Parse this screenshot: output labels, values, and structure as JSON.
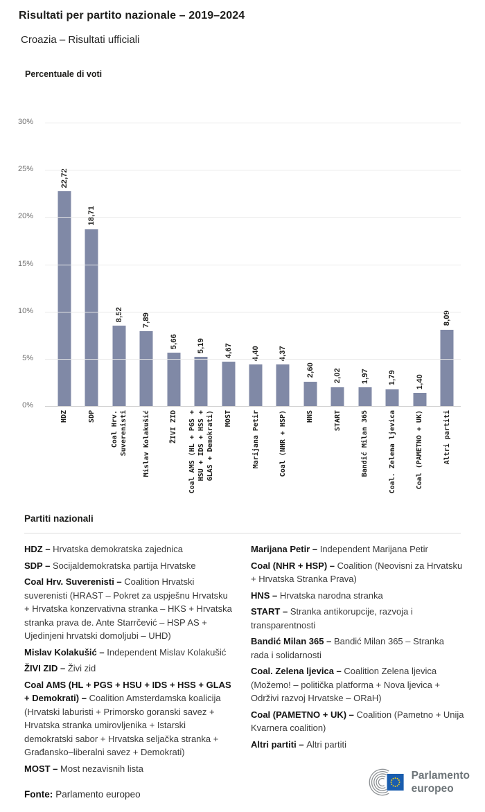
{
  "header": {
    "title": "Risultati per partito nazionale – 2019–2024",
    "subtitle": "Croazia – Risultati ufficiali"
  },
  "chart_data": {
    "type": "bar",
    "title": "Percentuale di voti",
    "xlabel": "",
    "ylabel": "Percentuale di voti",
    "ylim": [
      0,
      30
    ],
    "grid": "horizontal",
    "bar_color": "#8089A6",
    "yticks": [
      "30%",
      "25%",
      "20%",
      "15%",
      "10%",
      "5%",
      "0%"
    ],
    "categories": [
      "HDZ",
      "SDP",
      "Coal Hrv.\nSuverenisti",
      "Mislav Kolakušić",
      "ŽIVI ZID",
      "Coal AMS (HL + PGS +\nHSU + IDS + HSS +\nGLAS + Demokrati)",
      "MOST",
      "Marijana Petir",
      "Coal (NHR + HSP)",
      "HNS",
      "START",
      "Bandić Milan 365",
      "Coal. Zelena ljevica",
      "Coal (PAMETNO + UK)",
      "Altri partiti"
    ],
    "values": [
      22.72,
      18.71,
      8.52,
      7.89,
      5.66,
      5.19,
      4.67,
      4.4,
      4.37,
      2.6,
      2.02,
      1.97,
      1.79,
      1.4,
      8.09
    ],
    "value_labels": [
      "22,72",
      "18,71",
      "8,52",
      "7,89",
      "5,66",
      "5,19",
      "4,67",
      "4,40",
      "4,37",
      "2,60",
      "2,02",
      "1,97",
      "1,79",
      "1,40",
      "8,09"
    ]
  },
  "legend": {
    "heading": "Partiti nazionali",
    "left": [
      {
        "term": "HDZ –",
        "desc": "Hrvatska demokratska zajednica"
      },
      {
        "term": "SDP –",
        "desc": "Socijaldemokratska partija Hrvatske"
      },
      {
        "term": "Coal Hrv. Suverenisti –",
        "desc": "Coalition Hrvatski suverenisti (HRAST – Pokret za uspješnu Hrvatsku + Hrvatska konzervativna stranka – HKS + Hrvatska stranka prava de. Ante Starrčević – HSP AS + Ujedinjeni hrvatski domoljubi – UHD)"
      },
      {
        "term": "Mislav Kolakušić –",
        "desc": "Independent Mislav Kolakušić"
      },
      {
        "term": "ŽIVI ZID –",
        "desc": "Živi zid"
      },
      {
        "term": "Coal AMS (HL + PGS + HSU + IDS + HSS + GLAS + Demokrati) –",
        "desc": "Coalition Amsterdamska koalicija (Hrvatski laburisti + Primorsko goranski savez + Hrvatska stranka umirovljenika + Istarski demokratski sabor + Hrvatska seljačka stranka + Građansko–liberalni savez + Demokrati)"
      },
      {
        "term": "MOST –",
        "desc": "Most nezavisnih lista"
      }
    ],
    "right": [
      {
        "term": "Marijana Petir –",
        "desc": "Independent Marijana Petir"
      },
      {
        "term": "Coal (NHR + HSP) –",
        "desc": "Coalition (Neovisni za Hrvatsku + Hrvatska Stranka Prava)"
      },
      {
        "term": "HNS –",
        "desc": "Hrvatska narodna stranka"
      },
      {
        "term": "START –",
        "desc": "Stranka antikorupcije, razvoja i transparentnosti"
      },
      {
        "term": "Bandić Milan 365 –",
        "desc": "Bandić Milan 365 – Stranka rada i solidarnosti"
      },
      {
        "term": "Coal. Zelena ljevica –",
        "desc": "Coalition Zelena ljevica (Možemo! – politička platforma + Nova ljevica + Održivi razvoj Hrvatske – ORaH)"
      },
      {
        "term": "Coal (PAMETNO + UK) –",
        "desc": "Coalition (Pametno + Unija Kvarnera coalition)"
      },
      {
        "term": "Altri partiti –",
        "desc": "Altri partiti"
      }
    ]
  },
  "footer": {
    "source_label": "Fonte:",
    "source_value": "Parlamento europeo",
    "logo_line1": "Parlamento",
    "logo_line2": "europeo",
    "logo_blue": "#1a5dae",
    "logo_star_yellow": "#f7d117",
    "logo_gray": "#8f9396"
  }
}
